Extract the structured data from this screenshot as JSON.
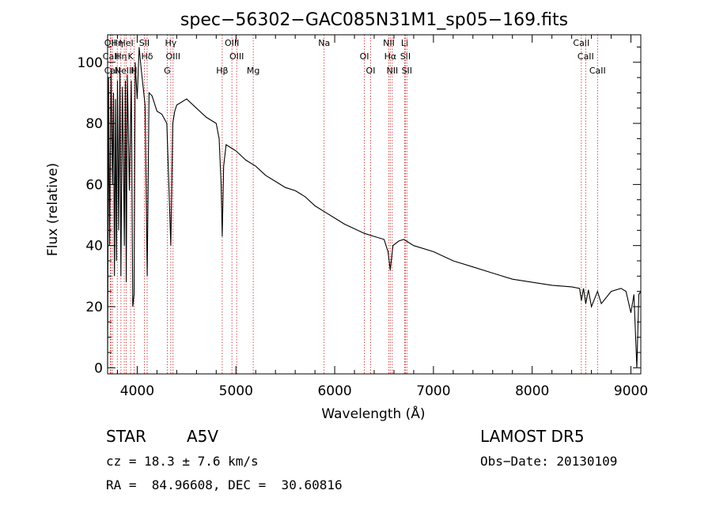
{
  "chart_data": {
    "type": "line",
    "title": "spec−56302−GAC085N31M1_sp05−169.fits",
    "xlabel": "Wavelength (Å)",
    "ylabel": "Flux (relative)",
    "xlim": [
      3700,
      9100
    ],
    "ylim": [
      -2,
      109
    ],
    "xticks": [
      4000,
      5000,
      6000,
      7000,
      8000,
      9000
    ],
    "yticks": [
      0,
      20,
      40,
      60,
      80,
      100
    ],
    "series": [
      {
        "x": [
          3700,
          3710,
          3720,
          3735,
          3750,
          3760,
          3770,
          3780,
          3790,
          3800,
          3812,
          3825,
          3835,
          3850,
          3865,
          3870,
          3880,
          3889,
          3900,
          3920,
          3940,
          3955,
          3968,
          3980,
          4000,
          4020,
          4040,
          4060,
          4080,
          4101,
          4120,
          4150,
          4200,
          4250,
          4300,
          4320,
          4340,
          4360,
          4380,
          4400,
          4500,
          4600,
          4700,
          4800,
          4830,
          4850,
          4861,
          4875,
          4900,
          4950,
          5000,
          5100,
          5200,
          5300,
          5400,
          5500,
          5600,
          5700,
          5800,
          5900,
          6000,
          6100,
          6200,
          6300,
          6400,
          6500,
          6540,
          6563,
          6590,
          6650,
          6700,
          6800,
          7000,
          7200,
          7400,
          7600,
          7800,
          8000,
          8200,
          8400,
          8480,
          8498,
          8520,
          8542,
          8570,
          8600,
          8662,
          8700,
          8800,
          8900,
          8950,
          9000,
          9030,
          9060,
          9080,
          9100
        ],
        "values": [
          0,
          95,
          40,
          98,
          60,
          90,
          30,
          88,
          35,
          94,
          45,
          98,
          30,
          92,
          55,
          40,
          94,
          28,
          96,
          58,
          94,
          20,
          24,
          100,
          88,
          105,
          98,
          92,
          86,
          30,
          90,
          89,
          84,
          83,
          80,
          60,
          40,
          80,
          84,
          86,
          88,
          85,
          82,
          80,
          75,
          60,
          43,
          66,
          73,
          72,
          71,
          68,
          66,
          63,
          61,
          59,
          58,
          56,
          53,
          51,
          49,
          47,
          45.5,
          44,
          43,
          42,
          38,
          32,
          40,
          41.5,
          42,
          40,
          38,
          35,
          33,
          31,
          29,
          28,
          27,
          26.5,
          26,
          22,
          26,
          21,
          25.5,
          20,
          25,
          21,
          25,
          26,
          25,
          18,
          24,
          0,
          24,
          25
        ]
      }
    ],
    "lines": [
      {
        "wavelength": 3727,
        "label": "OII"
      },
      {
        "wavelength": 3734,
        "label": "CaII"
      },
      {
        "wavelength": 3750,
        "label": "CaII"
      },
      {
        "wavelength": 3798,
        "label": "Hη"
      },
      {
        "wavelength": 3835,
        "label": "Hη"
      },
      {
        "wavelength": 3869,
        "label": "NeIII"
      },
      {
        "wavelength": 3889,
        "label": "HeI"
      },
      {
        "wavelength": 3933,
        "label": "K"
      },
      {
        "wavelength": 3968,
        "label": "H"
      },
      {
        "wavelength": 4072,
        "label": "SII"
      },
      {
        "wavelength": 4101,
        "label": "Hδ"
      },
      {
        "wavelength": 4304,
        "label": "G"
      },
      {
        "wavelength": 4340,
        "label": "Hγ"
      },
      {
        "wavelength": 4363,
        "label": "OIII"
      },
      {
        "wavelength": 4861,
        "label": "Hβ"
      },
      {
        "wavelength": 4959,
        "label": "OIII"
      },
      {
        "wavelength": 5007,
        "label": "OIII"
      },
      {
        "wavelength": 5175,
        "label": "Mg"
      },
      {
        "wavelength": 5893,
        "label": "Na"
      },
      {
        "wavelength": 6300,
        "label": "OI"
      },
      {
        "wavelength": 6364,
        "label": "OI"
      },
      {
        "wavelength": 6548,
        "label": "NII"
      },
      {
        "wavelength": 6563,
        "label": "Hα"
      },
      {
        "wavelength": 6583,
        "label": "NII"
      },
      {
        "wavelength": 6708,
        "label": "Li"
      },
      {
        "wavelength": 6716,
        "label": "SII"
      },
      {
        "wavelength": 6731,
        "label": "SII"
      },
      {
        "wavelength": 8498,
        "label": "CaII"
      },
      {
        "wavelength": 8542,
        "label": "CaII"
      },
      {
        "wavelength": 8662,
        "label": "CaII"
      }
    ]
  },
  "info": {
    "object_type": "STAR",
    "subclass": "A5V",
    "survey": "LAMOST DR5",
    "cz": "cz = 18.3 ± 7.6 km/s",
    "obs_date": "Obs−Date: 20130109",
    "coords": "RA =  84.96608, DEC =  30.60816"
  },
  "colors": {
    "spectrum": "#000000",
    "line_marker": "#cc2222"
  }
}
